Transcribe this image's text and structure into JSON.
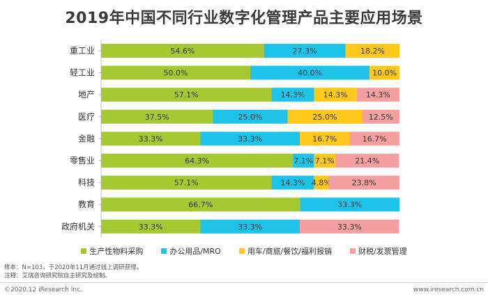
{
  "title": "2019年中国不同行业数字化管理产品主要应用场景",
  "chart_data": {
    "type": "bar",
    "stacked": true,
    "orientation": "horizontal",
    "normalized_percent": true,
    "categories": [
      "重工业",
      "轻工业",
      "地产",
      "医疗",
      "金融",
      "零售业",
      "科技",
      "教育",
      "政府机关"
    ],
    "series": [
      {
        "name": "生产性物料采购",
        "color": "#a6c832",
        "values": [
          54.6,
          50.0,
          57.1,
          37.5,
          33.3,
          64.3,
          57.1,
          66.7,
          33.3
        ]
      },
      {
        "name": "办公用品/MRO",
        "color": "#1dc3e8",
        "values": [
          27.3,
          40.0,
          14.3,
          25.0,
          33.3,
          7.1,
          14.3,
          33.3,
          33.3
        ]
      },
      {
        "name": "用车/商旅/餐饮/福利报销",
        "color": "#ffc81a",
        "values": [
          18.2,
          10.0,
          14.3,
          25.0,
          16.7,
          7.1,
          4.8,
          0,
          0
        ]
      },
      {
        "name": "财税/发票管理",
        "color": "#f4a0a0",
        "values": [
          0,
          0,
          14.3,
          12.5,
          16.7,
          21.4,
          23.8,
          0,
          33.3
        ]
      }
    ],
    "value_labels": [
      [
        "54.6%",
        "50.0%",
        "57.1%",
        "37.5%",
        "33.3%",
        "64.3%",
        "57.1%",
        "66.7%",
        "33.3%"
      ],
      [
        "27.3%",
        "40.0%",
        "14.3%",
        "25.0%",
        "33.3%",
        "7.1%",
        "14.3%",
        "33.3%",
        "33.3%"
      ],
      [
        "18.2%",
        "10.0%",
        "14.3%",
        "25.0%",
        "16.7%",
        "7.1%",
        "4.8%",
        "",
        ""
      ],
      [
        "",
        "",
        "14.3%",
        "12.5%",
        "16.7%",
        "21.4%",
        "23.8%",
        "",
        "33.3%"
      ]
    ],
    "legend_position": "bottom",
    "grid": false
  },
  "notes": [
    "样本：N=103，于2020年11月通过线上调研获得。",
    "注释：艾瑞咨询研究院自主研究及绘制。"
  ],
  "footer": {
    "copyright": "©2020.12 iResearch Inc.",
    "website": "www.iresearch.com.cn"
  }
}
